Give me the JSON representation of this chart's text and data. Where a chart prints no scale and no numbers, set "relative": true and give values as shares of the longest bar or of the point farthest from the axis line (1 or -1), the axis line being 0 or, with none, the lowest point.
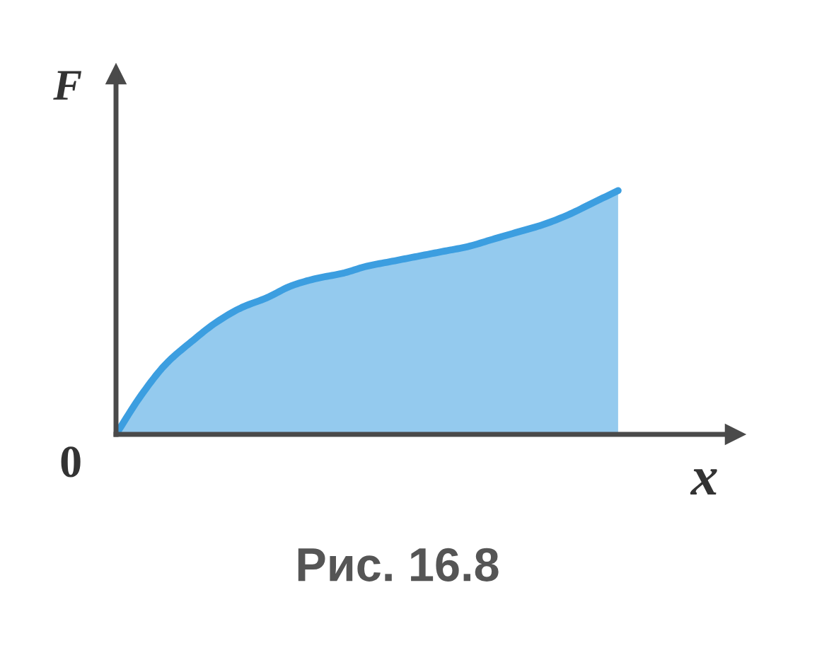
{
  "chart_data": {
    "type": "area",
    "relative": true,
    "xlabel": "x",
    "ylabel": "F",
    "categories": [
      null,
      null,
      null,
      null,
      null,
      null,
      null,
      null,
      null,
      null,
      null,
      null,
      null,
      null,
      null,
      null,
      null,
      null,
      null,
      null,
      null
    ],
    "series": [
      {
        "color": "#3c9ee0",
        "values": [
          0,
          0.16,
          0.29,
          0.38,
          0.46,
          0.52,
          0.56,
          0.61,
          0.64,
          0.66,
          0.69,
          0.71,
          0.73,
          0.75,
          0.77,
          0.8,
          0.83,
          0.86,
          0.9,
          0.95,
          1
        ]
      }
    ],
    "annotations": [
      "0",
      "Рис. 16.8"
    ]
  }
}
